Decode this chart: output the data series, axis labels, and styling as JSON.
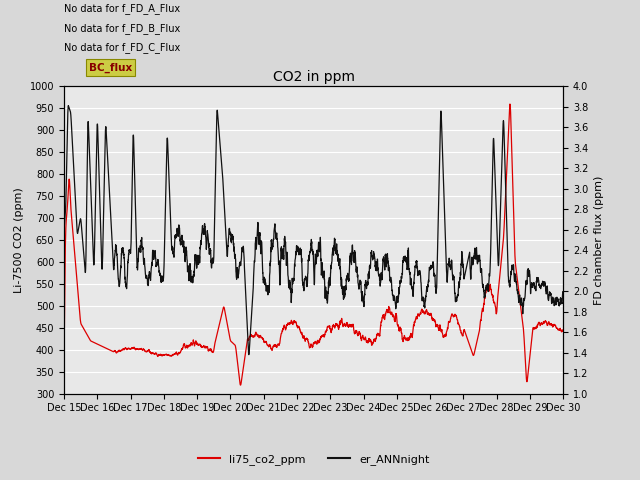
{
  "title": "CO2 in ppm",
  "ylabel_left": "Li-7500 CO2 (ppm)",
  "ylabel_right": "FD chamber flux (ppm)",
  "ylim_left": [
    300,
    1000
  ],
  "ylim_right": [
    1.0,
    4.0
  ],
  "fig_facecolor": "#d8d8d8",
  "plot_facecolor": "#e8e8e8",
  "no_data_texts": [
    "No data for f_FD_A_Flux",
    "No data for f_FD_B_Flux",
    "No data for f_FD_C_Flux"
  ],
  "bc_flux_text": "BC_flux",
  "bc_flux_color": "#cccc44",
  "xtick_labels": [
    "Dec 15",
    "Dec 16",
    "Dec 17",
    "Dec 18",
    "Dec 19",
    "Dec 20",
    "Dec 21",
    "Dec 22",
    "Dec 23",
    "Dec 24",
    "Dec 25",
    "Dec 26",
    "Dec 27",
    "Dec 28",
    "Dec 29",
    "Dec 30"
  ],
  "yticks_left": [
    300,
    350,
    400,
    450,
    500,
    550,
    600,
    650,
    700,
    750,
    800,
    850,
    900,
    950,
    1000
  ],
  "yticks_right": [
    1.0,
    1.2,
    1.4,
    1.6,
    1.8,
    2.0,
    2.2,
    2.4,
    2.6,
    2.8,
    3.0,
    3.2,
    3.4,
    3.6,
    3.8,
    4.0
  ],
  "red_color": "#dd0000",
  "black_color": "#111111",
  "legend_labels": [
    "li75_co2_ppm",
    "er_ANNnight"
  ]
}
